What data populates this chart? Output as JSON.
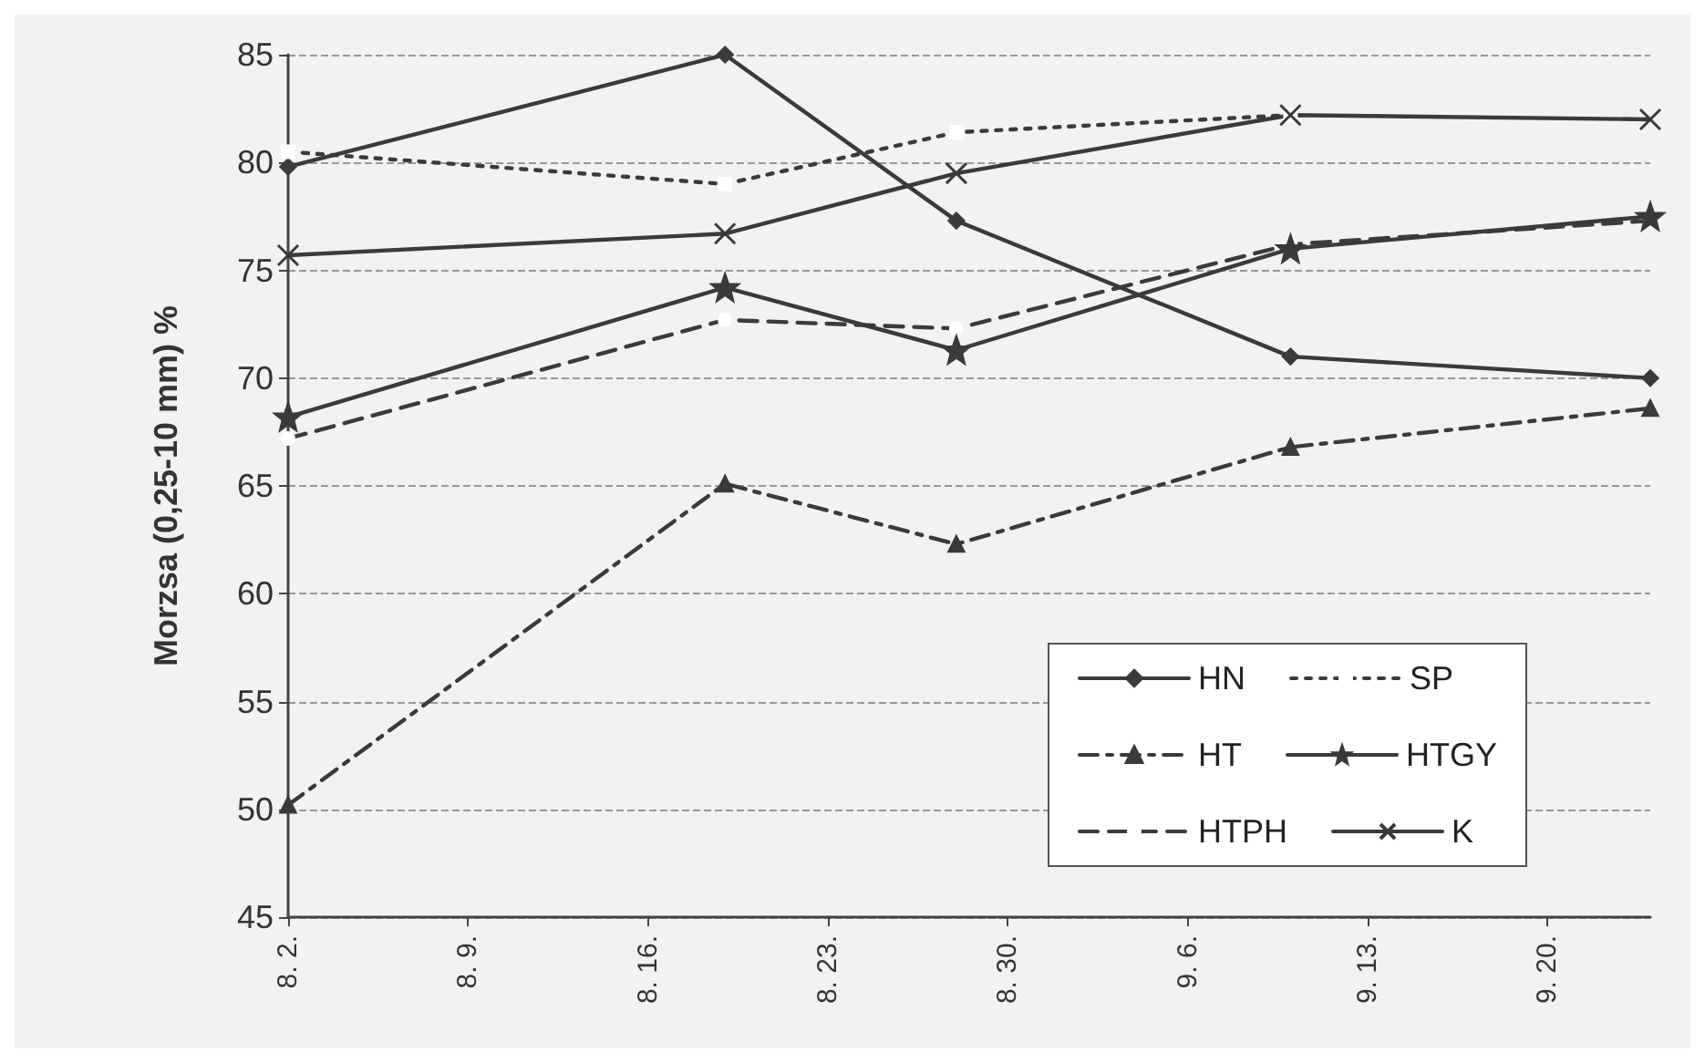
{
  "chart_data": {
    "type": "line",
    "ylabel": "Morzsa (0,25-10 mm) %",
    "x": [
      "--08-02",
      "--08-19",
      "--08-28",
      "--09-10",
      "--09-24"
    ],
    "xlim": [
      "--08-02",
      "--09-24"
    ],
    "xticks": [
      {
        "value": "--08-02",
        "label": "8. 2."
      },
      {
        "value": "--08-09",
        "label": "8. 9."
      },
      {
        "value": "--08-16",
        "label": "8. 16."
      },
      {
        "value": "--08-23",
        "label": "8. 23."
      },
      {
        "value": "--08-30",
        "label": "8. 30."
      },
      {
        "value": "--09-06",
        "label": "9. 6."
      },
      {
        "value": "--09-13",
        "label": "9. 13."
      },
      {
        "value": "--09-20",
        "label": "9. 20."
      }
    ],
    "ylim": [
      45,
      85
    ],
    "yticks": [
      45,
      50,
      55,
      60,
      65,
      70,
      75,
      80,
      85
    ],
    "grid": "y",
    "legend": "bottom right",
    "series": [
      {
        "name": "HN",
        "color": "#3a3a3a",
        "marker": "diamond",
        "line_style": "solid",
        "values": [
          79.8,
          85,
          77.3,
          71,
          70
        ]
      },
      {
        "name": "SP",
        "color": "#3a3a3a",
        "marker": "square",
        "line_style": "dotted",
        "values": [
          80.5,
          79,
          81.4,
          82.2,
          null
        ]
      },
      {
        "name": "HT",
        "color": "#3a3a3a",
        "marker": "triangle",
        "line_style": "dashdot",
        "values": [
          50.2,
          65.1,
          62.3,
          66.8,
          68.6
        ]
      },
      {
        "name": "HTGY",
        "color": "#3a3a3a",
        "marker": "star",
        "line_style": "solid",
        "values": [
          68.2,
          74.2,
          71.3,
          76,
          77.5
        ]
      },
      {
        "name": "HTPH",
        "color": "#3a3a3a",
        "marker": "circle",
        "line_style": "dashed",
        "values": [
          67.2,
          72.7,
          72.3,
          76.2,
          77.3
        ]
      },
      {
        "name": "K",
        "color": "#3a3a3a",
        "marker": "cross",
        "line_style": "solid",
        "values": [
          75.7,
          76.7,
          79.5,
          82.2,
          82
        ]
      }
    ]
  }
}
